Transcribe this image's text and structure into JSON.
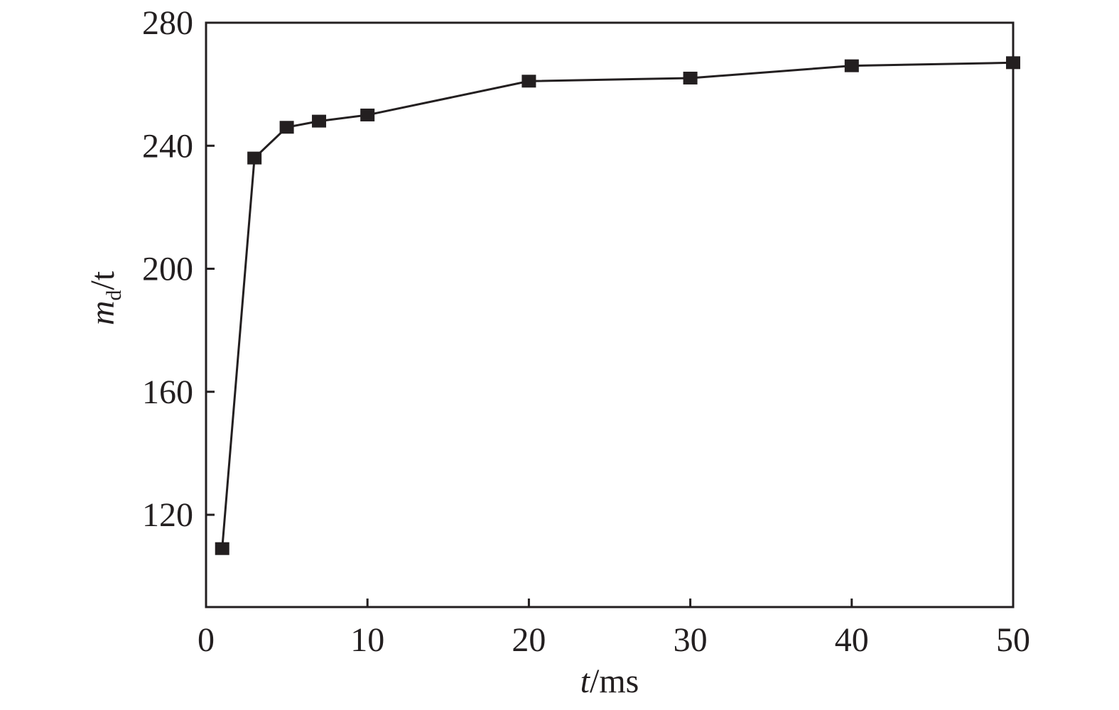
{
  "chart_data": {
    "type": "line",
    "xlabel": [
      "t",
      "/ms"
    ],
    "ylabel": [
      "m",
      "d",
      "/t"
    ],
    "x": [
      1,
      3,
      5,
      7,
      10,
      20,
      30,
      40,
      50
    ],
    "series": [
      {
        "color": "#231f20",
        "values": [
          109,
          236,
          246,
          248,
          250,
          261,
          262,
          266,
          267
        ]
      }
    ],
    "xlim": [
      0,
      50
    ],
    "xticks": [
      0,
      10,
      20,
      30,
      40,
      50
    ],
    "ylim": [
      90,
      280
    ],
    "yticks": [
      120,
      160,
      200,
      240,
      280
    ],
    "grid": false
  }
}
